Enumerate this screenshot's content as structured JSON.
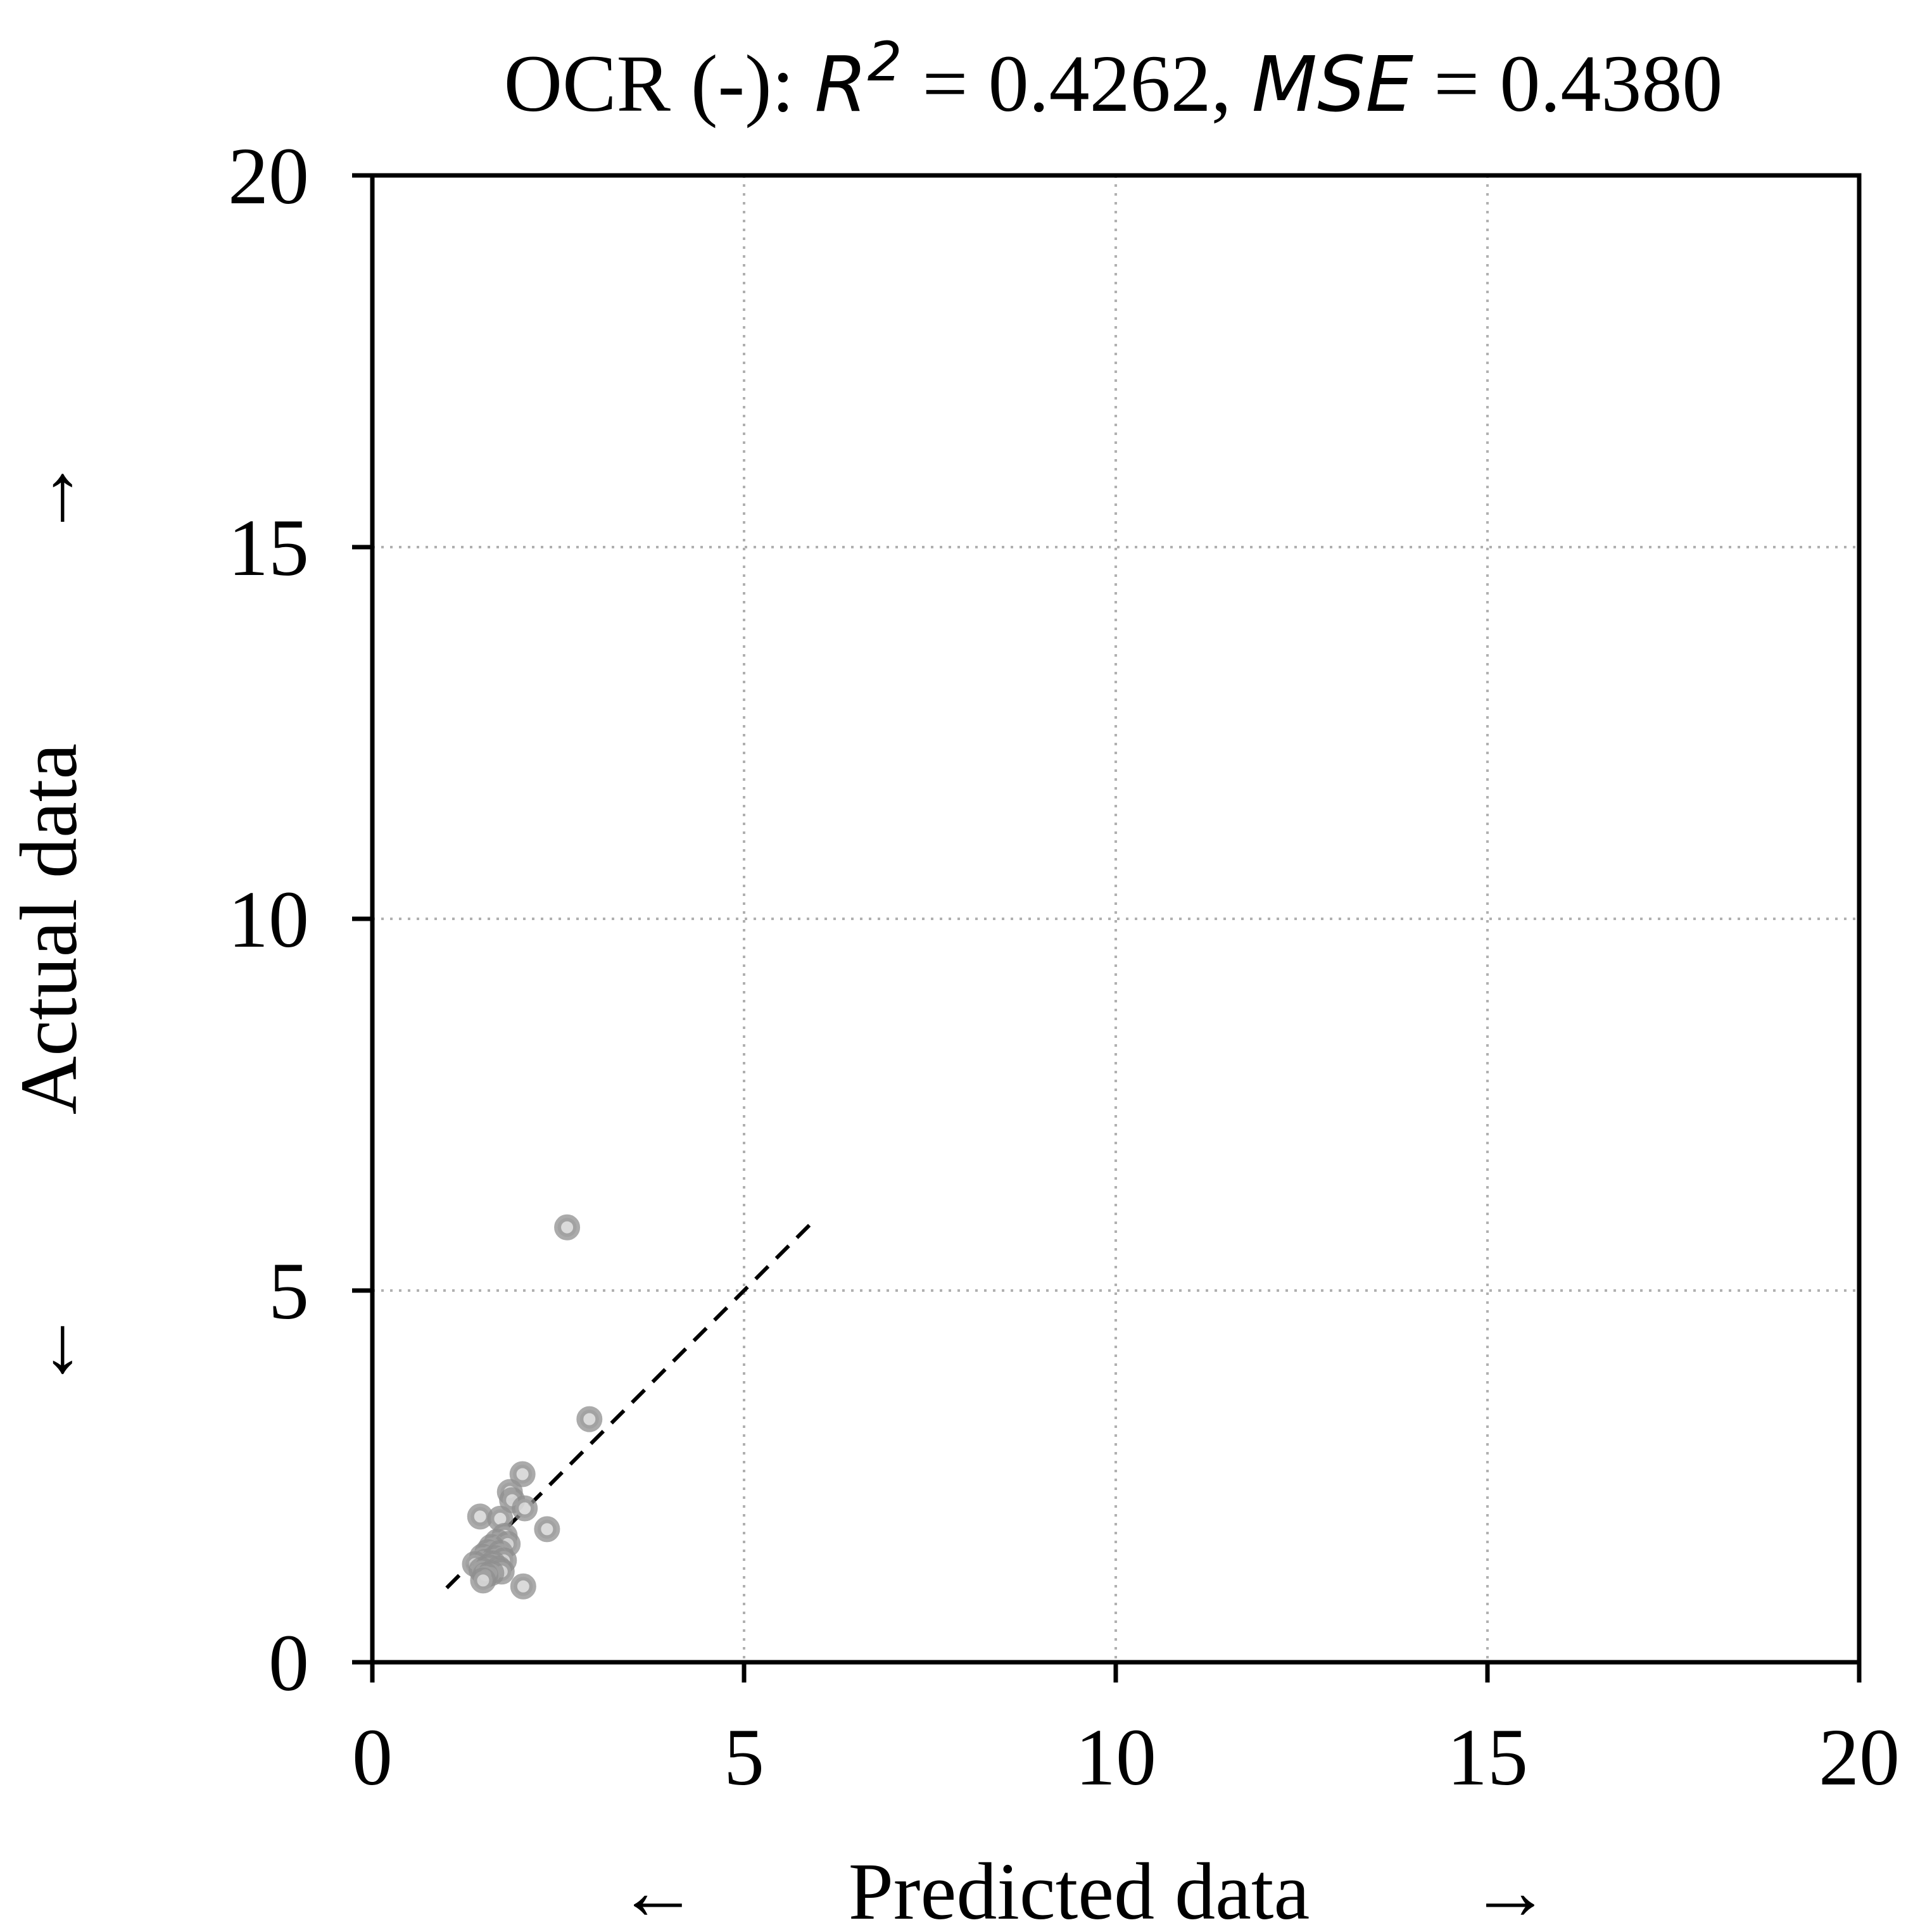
{
  "chart_data": {
    "type": "scatter",
    "title": {
      "prefix": "OCR (-): ",
      "r2_symbol": "R",
      "r2_exponent": "2",
      "r2_value": " = 0.4262, ",
      "mse_symbol": "MSE",
      "mse_value": " = 0.4380"
    },
    "xlabel": {
      "left_arrow": "←",
      "text": "Predicted data",
      "right_arrow": "→"
    },
    "ylabel": {
      "down_arrow": "←",
      "text": "Actual data",
      "up_arrow": "→"
    },
    "xlim": [
      0,
      20
    ],
    "ylim": [
      0,
      20
    ],
    "xticks": [
      "0",
      "5",
      "10",
      "15",
      "20"
    ],
    "yticks": [
      "0",
      "5",
      "10",
      "15",
      "20"
    ],
    "xtick_values": [
      0,
      5,
      10,
      15,
      20
    ],
    "ytick_values": [
      0,
      5,
      10,
      15,
      20
    ],
    "grid": true,
    "grid_lines_at": [
      5,
      10,
      15
    ],
    "reference_line": {
      "style": "dashed",
      "color": "#000000",
      "x": [
        1.0,
        5.9
      ],
      "y": [
        1.0,
        5.9
      ]
    },
    "marker_color": "#8f8f8f",
    "points": [
      {
        "x": 2.62,
        "y": 5.85
      },
      {
        "x": 2.92,
        "y": 3.27
      },
      {
        "x": 2.02,
        "y": 2.53
      },
      {
        "x": 1.85,
        "y": 2.29
      },
      {
        "x": 1.88,
        "y": 2.18
      },
      {
        "x": 2.05,
        "y": 2.07
      },
      {
        "x": 1.45,
        "y": 1.96
      },
      {
        "x": 1.72,
        "y": 1.93
      },
      {
        "x": 2.35,
        "y": 1.79
      },
      {
        "x": 1.78,
        "y": 1.7
      },
      {
        "x": 1.68,
        "y": 1.62
      },
      {
        "x": 1.82,
        "y": 1.59
      },
      {
        "x": 1.6,
        "y": 1.55
      },
      {
        "x": 1.55,
        "y": 1.48
      },
      {
        "x": 1.72,
        "y": 1.47
      },
      {
        "x": 1.48,
        "y": 1.42
      },
      {
        "x": 1.65,
        "y": 1.4
      },
      {
        "x": 1.77,
        "y": 1.37
      },
      {
        "x": 1.52,
        "y": 1.35
      },
      {
        "x": 1.62,
        "y": 1.33
      },
      {
        "x": 1.38,
        "y": 1.32
      },
      {
        "x": 1.56,
        "y": 1.28
      },
      {
        "x": 1.7,
        "y": 1.26
      },
      {
        "x": 1.47,
        "y": 1.24
      },
      {
        "x": 1.74,
        "y": 1.22
      },
      {
        "x": 1.6,
        "y": 1.2
      },
      {
        "x": 1.52,
        "y": 1.17
      },
      {
        "x": 1.49,
        "y": 1.1
      },
      {
        "x": 2.03,
        "y": 1.02
      }
    ]
  }
}
